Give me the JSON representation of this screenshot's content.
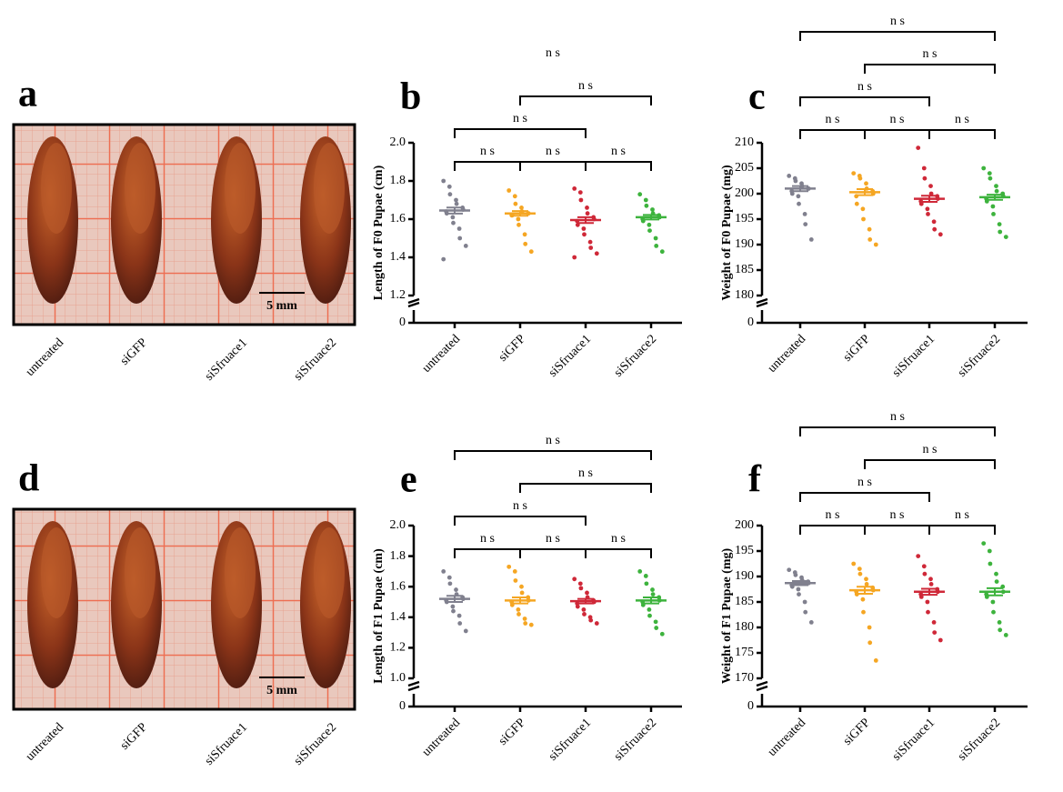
{
  "photos": [
    {
      "letter": "a",
      "labels": [
        "untreated",
        "siGFP",
        "siSfruace1",
        "siSfruace2"
      ],
      "scale": "5 mm"
    },
    {
      "letter": "d",
      "labels": [
        "untreated",
        "siGFP",
        "siSfruace1",
        "siSfruace2"
      ],
      "scale": "5 mm"
    }
  ],
  "chart_data": [
    {
      "type": "dotplot",
      "letter": "b",
      "ylabel": "Length of F0 Pupae (cm)",
      "categories": [
        "untreated",
        "siGFP",
        "siSfruace1",
        "siSfruace2"
      ],
      "colors": [
        "#80808e",
        "#f5a623",
        "#cf2838",
        "#3db33d"
      ],
      "ylim": [
        1.2,
        2.0
      ],
      "yticks": [
        1.2,
        1.4,
        1.6,
        1.8,
        {
          "value": 2,
          "label": "2.0"
        }
      ],
      "yticks_below_break": [
        0
      ],
      "points": [
        [
          1.8,
          1.77,
          1.73,
          1.7,
          1.68,
          1.66,
          1.65,
          1.64,
          1.63,
          1.61,
          1.58,
          1.55,
          1.5,
          1.46,
          1.39
        ],
        [
          1.75,
          1.72,
          1.68,
          1.66,
          1.64,
          1.63,
          1.63,
          1.62,
          1.62,
          1.6,
          1.57,
          1.52,
          1.47,
          1.43
        ],
        [
          1.76,
          1.74,
          1.7,
          1.66,
          1.63,
          1.61,
          1.6,
          1.59,
          1.57,
          1.55,
          1.52,
          1.48,
          1.45,
          1.42,
          1.4
        ],
        [
          1.73,
          1.7,
          1.67,
          1.65,
          1.63,
          1.62,
          1.61,
          1.6,
          1.59,
          1.57,
          1.54,
          1.5,
          1.46,
          1.43
        ]
      ],
      "means": [
        1.645,
        1.63,
        1.595,
        1.61
      ],
      "errors": [
        0.016,
        0.012,
        0.015,
        0.012
      ],
      "comparisons": [
        {
          "pair": [
            0,
            1
          ],
          "label": "n s"
        },
        {
          "pair": [
            1,
            2
          ],
          "label": "n s"
        },
        {
          "pair": [
            2,
            3
          ],
          "label": "n s"
        },
        {
          "pair": [
            0,
            2
          ],
          "label": "n s"
        },
        {
          "pair": [
            1,
            3
          ],
          "label": "n s"
        },
        {
          "pair": [
            0,
            3
          ],
          "label": "n s",
          "bracket": false
        }
      ]
    },
    {
      "type": "dotplot",
      "letter": "c",
      "ylabel": "Weight of F0 Pupae (mg)",
      "categories": [
        "untreated",
        "siGFP",
        "siSfruace1",
        "siSfruace2"
      ],
      "colors": [
        "#80808e",
        "#f5a623",
        "#cf2838",
        "#3db33d"
      ],
      "ylim": [
        180,
        210
      ],
      "yticks": [
        180,
        185,
        190,
        195,
        200,
        205,
        210
      ],
      "yticks_below_break": [
        0
      ],
      "points": [
        [
          203.5,
          203,
          202.5,
          202,
          201.5,
          201,
          201,
          200.5,
          200,
          199.5,
          198,
          196,
          194,
          191
        ],
        [
          204,
          203.5,
          203,
          202,
          201,
          200.5,
          200,
          199.5,
          198,
          197,
          195,
          193,
          191,
          190
        ],
        [
          209,
          205,
          203,
          201.5,
          200,
          199.5,
          199,
          198.5,
          198,
          197,
          196,
          194.5,
          193,
          192
        ],
        [
          205,
          204,
          203,
          201.5,
          200.5,
          200,
          199.5,
          199,
          198.5,
          197.5,
          196,
          194,
          192.5,
          191.5
        ]
      ],
      "means": [
        201,
        200.3,
        199,
        199.3
      ],
      "errors": [
        0.5,
        0.6,
        0.6,
        0.5
      ],
      "comparisons": [
        {
          "pair": [
            0,
            1
          ],
          "label": "n s"
        },
        {
          "pair": [
            1,
            2
          ],
          "label": "n s"
        },
        {
          "pair": [
            2,
            3
          ],
          "label": "n s"
        },
        {
          "pair": [
            0,
            2
          ],
          "label": "n s"
        },
        {
          "pair": [
            1,
            3
          ],
          "label": "n s"
        },
        {
          "pair": [
            0,
            3
          ],
          "label": "n s"
        }
      ]
    },
    {
      "type": "dotplot",
      "letter": "e",
      "ylabel": "Length of F1 Pupae (cm)",
      "categories": [
        "untreated",
        "siGFP",
        "siSfruace1",
        "siSfruace2"
      ],
      "colors": [
        "#80808e",
        "#f5a623",
        "#cf2838",
        "#3db33d"
      ],
      "ylim": [
        1.0,
        2.0
      ],
      "yticks": [
        {
          "value": 1,
          "label": "1.0"
        },
        1.2,
        1.4,
        1.6,
        1.8,
        {
          "value": 2,
          "label": "2.0"
        }
      ],
      "yticks_below_break": [
        0
      ],
      "points": [
        [
          1.7,
          1.66,
          1.62,
          1.58,
          1.55,
          1.53,
          1.52,
          1.51,
          1.5,
          1.47,
          1.44,
          1.41,
          1.36,
          1.31
        ],
        [
          1.73,
          1.7,
          1.64,
          1.6,
          1.56,
          1.53,
          1.51,
          1.5,
          1.48,
          1.45,
          1.42,
          1.39,
          1.36,
          1.35
        ],
        [
          1.65,
          1.62,
          1.59,
          1.56,
          1.53,
          1.51,
          1.5,
          1.49,
          1.47,
          1.45,
          1.42,
          1.4,
          1.38,
          1.36
        ],
        [
          1.7,
          1.67,
          1.62,
          1.58,
          1.55,
          1.53,
          1.51,
          1.5,
          1.48,
          1.45,
          1.41,
          1.37,
          1.33,
          1.29
        ]
      ],
      "means": [
        1.52,
        1.51,
        1.505,
        1.51
      ],
      "errors": [
        0.02,
        0.02,
        0.015,
        0.02
      ],
      "comparisons": [
        {
          "pair": [
            0,
            1
          ],
          "label": "n s"
        },
        {
          "pair": [
            1,
            2
          ],
          "label": "n s"
        },
        {
          "pair": [
            2,
            3
          ],
          "label": "n s"
        },
        {
          "pair": [
            0,
            2
          ],
          "label": "n s"
        },
        {
          "pair": [
            1,
            3
          ],
          "label": "n s"
        },
        {
          "pair": [
            0,
            3
          ],
          "label": "n s"
        }
      ]
    },
    {
      "type": "dotplot",
      "letter": "f",
      "ylabel": "Weight of F1 Pupae (mg)",
      "categories": [
        "untreated",
        "siGFP",
        "siSfruace1",
        "siSfruace2"
      ],
      "colors": [
        "#80808e",
        "#f5a623",
        "#cf2838",
        "#3db33d"
      ],
      "ylim": [
        170,
        200
      ],
      "yticks": [
        170,
        175,
        180,
        185,
        190,
        195,
        200
      ],
      "yticks_below_break": [
        0
      ],
      "points": [
        [
          191.3,
          190.8,
          190.3,
          189.8,
          189.3,
          189,
          188.7,
          188.3,
          188,
          187.5,
          186.5,
          185,
          183,
          181
        ],
        [
          192.5,
          191.5,
          190.5,
          189.5,
          188.5,
          187.8,
          187.3,
          187,
          186.5,
          185.5,
          183,
          180,
          177,
          173.5
        ],
        [
          194,
          192,
          190.5,
          189.5,
          188.5,
          187.5,
          187,
          186.5,
          186,
          185,
          183,
          181,
          179,
          177.5
        ],
        [
          196.5,
          195,
          192.5,
          190.5,
          189,
          188,
          187,
          186.5,
          186,
          185,
          183,
          181,
          179.5,
          178.5
        ]
      ],
      "means": [
        188.7,
        187.3,
        187,
        187
      ],
      "errors": [
        0.4,
        0.7,
        0.6,
        0.7
      ],
      "comparisons": [
        {
          "pair": [
            0,
            1
          ],
          "label": "n s"
        },
        {
          "pair": [
            1,
            2
          ],
          "label": "n s"
        },
        {
          "pair": [
            2,
            3
          ],
          "label": "n s"
        },
        {
          "pair": [
            0,
            2
          ],
          "label": "n s"
        },
        {
          "pair": [
            1,
            3
          ],
          "label": "n s"
        },
        {
          "pair": [
            0,
            3
          ],
          "label": "n s"
        }
      ]
    }
  ]
}
